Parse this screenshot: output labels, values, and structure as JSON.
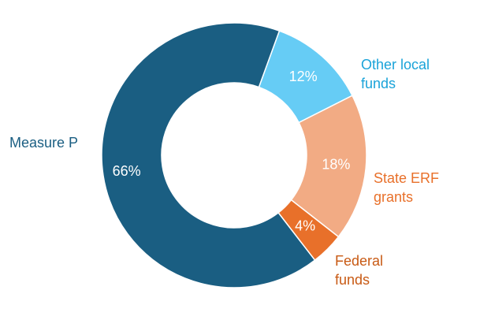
{
  "chart_data": {
    "type": "donut",
    "slices": [
      {
        "category": "Other local funds",
        "label_lines": [
          "Other local",
          "funds"
        ],
        "value": 12,
        "value_label": "12%",
        "color": "#66CCF5",
        "label_color": "#1AA3D9"
      },
      {
        "category": "State ERF grants",
        "label_lines": [
          "State ERF",
          "grants"
        ],
        "value": 18,
        "value_label": "18%",
        "color": "#F2AB84",
        "label_color": "#E8702A"
      },
      {
        "category": "Federal funds",
        "label_lines": [
          "Federal",
          "funds"
        ],
        "value": 4,
        "value_label": "4%",
        "color": "#E8702A",
        "label_color": "#C85A14"
      },
      {
        "category": "Measure P",
        "label_lines": [
          "Measure P"
        ],
        "value": 66,
        "value_label": "66%",
        "color": "#1A5E82",
        "label_color": "#1A5E82"
      }
    ]
  }
}
